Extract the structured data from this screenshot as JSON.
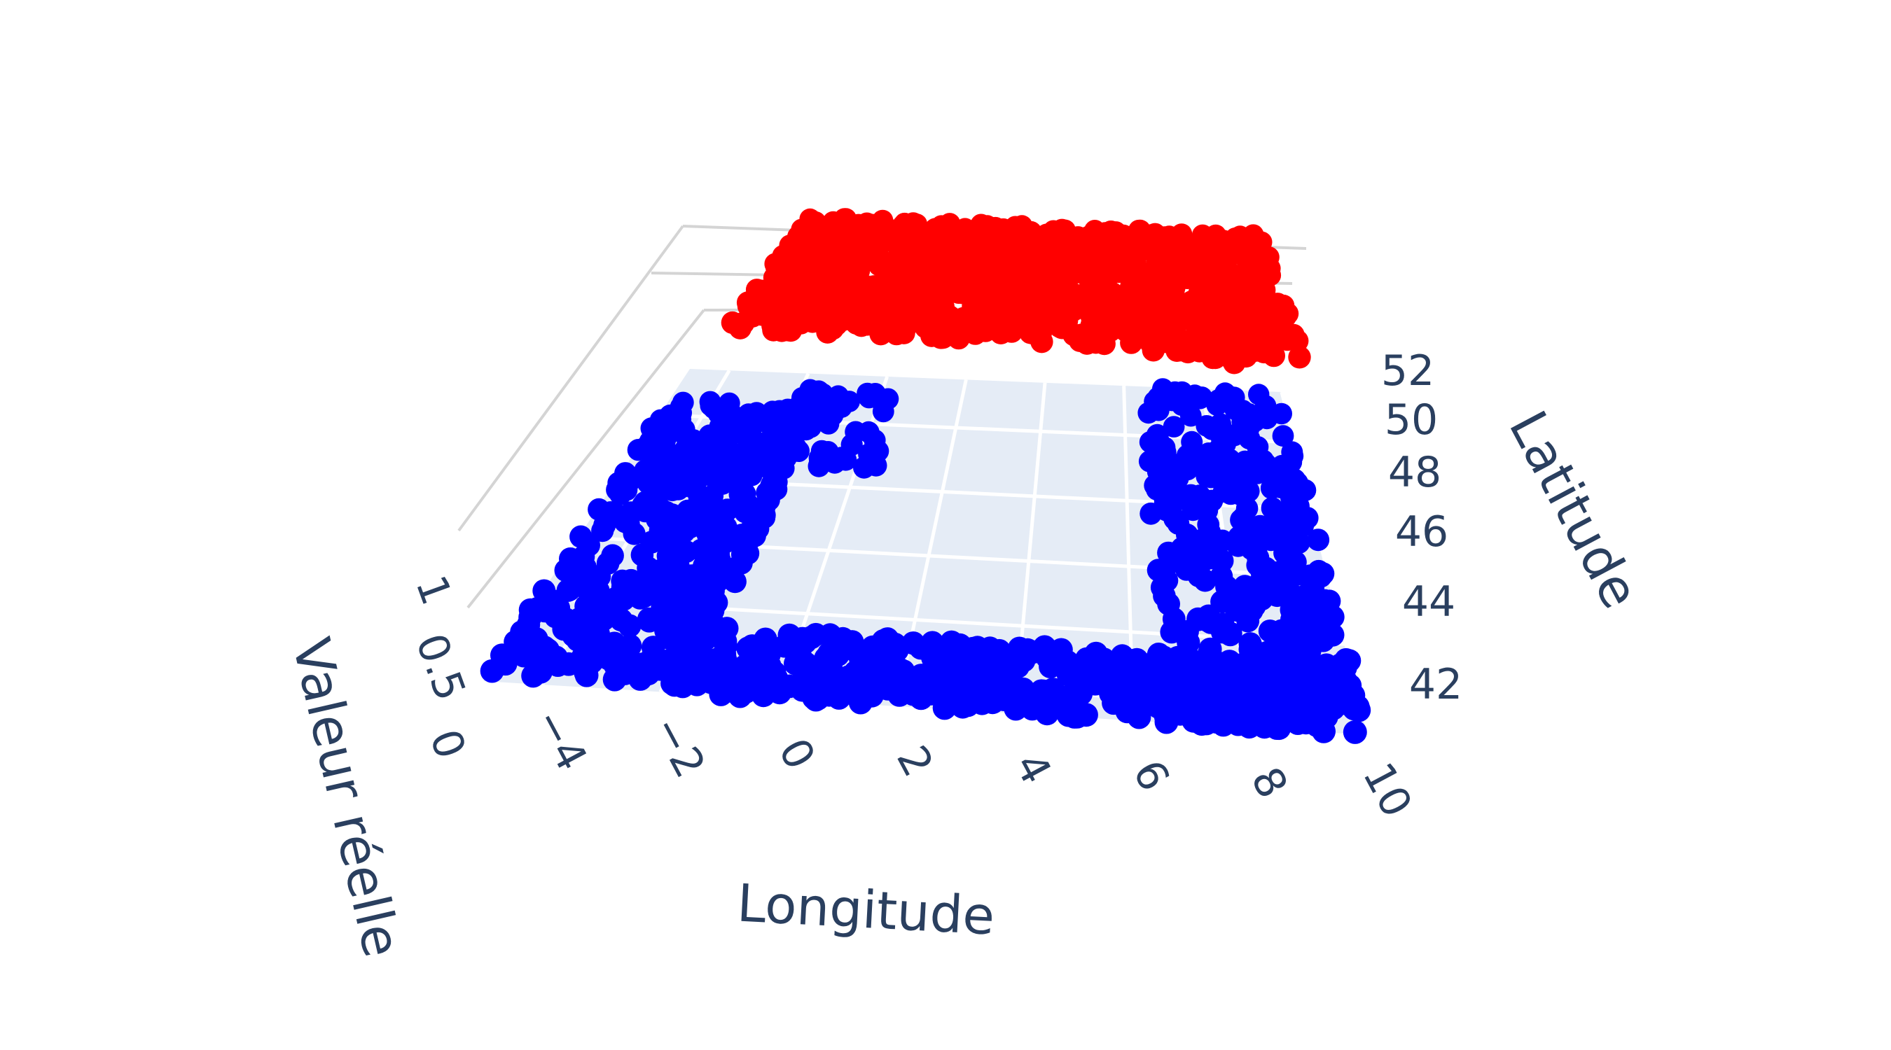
{
  "chart_data": {
    "type": "scatter3d",
    "title": "",
    "axes": {
      "x": {
        "title": "Longitude",
        "range": [
          -5,
          10
        ],
        "ticks": [
          -4,
          -2,
          0,
          2,
          4,
          6,
          8,
          10
        ],
        "tick_labels": [
          "−4",
          "−2",
          "0",
          "2",
          "4",
          "6",
          "8",
          "10"
        ]
      },
      "y": {
        "title": "Latitude",
        "range": [
          41.3,
          51.5
        ],
        "ticks": [
          42,
          44,
          46,
          48,
          50,
          52
        ],
        "tick_labels": [
          "42",
          "44",
          "46",
          "48",
          "50",
          "52"
        ]
      },
      "z": {
        "title": "Valeur réelle",
        "range": [
          0,
          1
        ],
        "ticks": [
          0,
          0.5,
          1
        ],
        "tick_labels": [
          "0",
          "0.5",
          "1"
        ]
      }
    },
    "floor_color": "#e5ecf6",
    "grid_color": "#ffffff",
    "series": [
      {
        "color": "#0000ff",
        "z": 0,
        "description_regions": [
          {
            "lon": [
              -5,
              -1.5
            ],
            "lat": [
              41.5,
              50.5
            ],
            "count": 420
          },
          {
            "lon": [
              -1.5,
              9.8
            ],
            "lat": [
              41.3,
              43.4
            ],
            "count": 420
          },
          {
            "lon": [
              6.5,
              10
            ],
            "lat": [
              41.5,
              51.5
            ],
            "count": 360
          },
          {
            "lon": [
              -2,
              0.5
            ],
            "lat": [
              48.5,
              51
            ],
            "count": 60
          }
        ]
      },
      {
        "color": "#ff0000",
        "z": 1,
        "description_regions": [
          {
            "lon": [
              -2,
              9.5
            ],
            "lat": [
              46,
              51.5
            ],
            "count": 900
          },
          {
            "lon": [
              7.6,
              8.4
            ],
            "lat": [
              45.6,
              46.6
            ],
            "count": 25
          }
        ]
      }
    ]
  }
}
